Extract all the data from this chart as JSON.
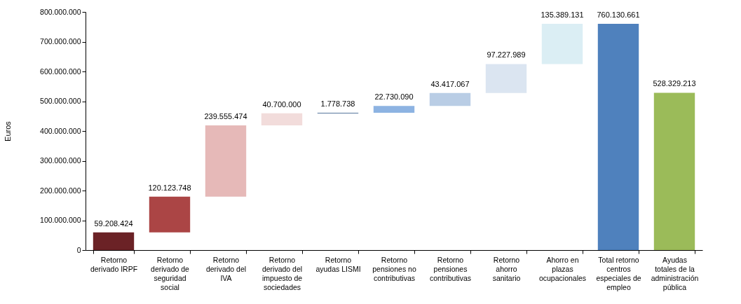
{
  "chart_data": {
    "type": "bar",
    "ylabel": "Euros",
    "categories": [
      "Retorno derivado IRPF",
      "Retorno derivado de seguridad social",
      "Retorno derivado del IVA",
      "Retorno derivado del impuesto de sociedades",
      "Retorno ayudas LISMI",
      "Retorno pensiones no contributivas",
      "Retorno pensiones contributivas",
      "Retorno ahorro sanitario",
      "Ahorro en plazas ocupacionales",
      "Total retorno centros especiales de empleo",
      "Ayudas totales de la administración pública"
    ],
    "values": [
      59208424,
      120123748,
      239555474,
      40700000,
      1778738,
      22730090,
      43417067,
      97227989,
      135389131,
      760130661,
      528329213
    ],
    "base": [
      0,
      59208424,
      179332172,
      418887646,
      459587646,
      461366384,
      484096474,
      527513541,
      624741530,
      0,
      0
    ],
    "colors": [
      "#6b2226",
      "#ab4545",
      "#e6b9b8",
      "#f2dcdb",
      "#1f497d",
      "#8db3e2",
      "#b9cde5",
      "#dbe5f1",
      "#dbeef4",
      "#4f81bd",
      "#9bbb59"
    ],
    "value_labels": [
      "59.208.424",
      "120.123.748",
      "239.555.474",
      "40.700.000",
      "1.778.738",
      "22.730.090",
      "43.417.067",
      "97.227.989",
      "135.389.131",
      "760.130.661",
      "528.329.213"
    ],
    "ylim": [
      0,
      800000000
    ],
    "yticks": [
      0,
      {
        "value": 100000000,
        "label": "100.000.000"
      },
      {
        "value": 200000000,
        "label": "200.000.000"
      },
      {
        "value": 300000000,
        "label": "300.000.000"
      },
      {
        "value": 400000000,
        "label": "400.000.000"
      },
      {
        "value": 500000000,
        "label": "500.000.000"
      },
      {
        "value": 600000000,
        "label": "600.000.000"
      },
      {
        "value": 700000000,
        "label": "700.000.000"
      },
      {
        "value": 800000000,
        "label": "800.000.000"
      }
    ],
    "grid": false
  }
}
